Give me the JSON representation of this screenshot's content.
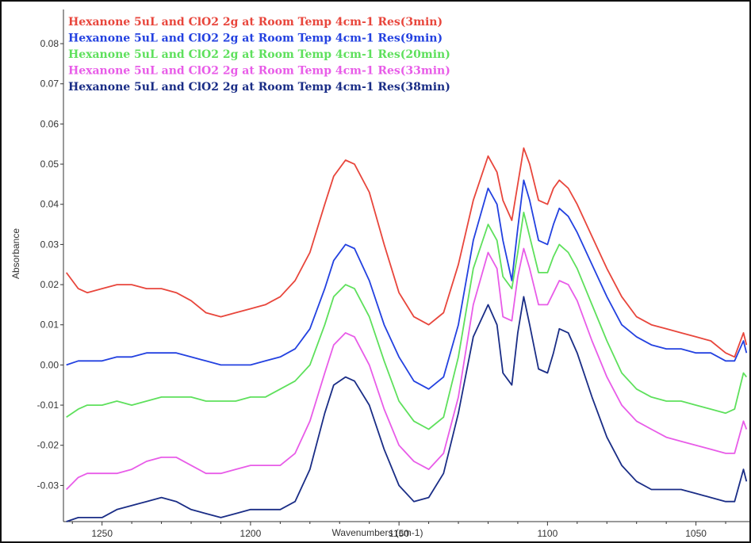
{
  "chart_data": {
    "type": "line",
    "title": "",
    "xlabel": "Wavenumbers (cm-1)",
    "ylabel": "Absorbance",
    "xlim": [
      1263,
      1032
    ],
    "x_reversed": true,
    "ylim": [
      -0.039,
      0.0885
    ],
    "x_ticks": [
      1250,
      1200,
      1150,
      1100,
      1050
    ],
    "x_tick_labels": [
      "1250",
      "1200",
      "1150",
      "1100",
      "1050"
    ],
    "y_ticks": [
      -0.03,
      -0.02,
      -0.01,
      0.0,
      0.01,
      0.02,
      0.03,
      0.04,
      0.05,
      0.06,
      0.07,
      0.08
    ],
    "y_tick_labels": [
      "-0.03",
      "-0.02",
      "-0.01",
      "0.00",
      "0.01",
      "0.02",
      "0.03",
      "0.04",
      "0.05",
      "0.06",
      "0.07",
      "0.08"
    ],
    "grid": false,
    "legend_position": "top-left",
    "x": [
      1262,
      1258,
      1255,
      1250,
      1245,
      1240,
      1235,
      1230,
      1225,
      1220,
      1215,
      1210,
      1205,
      1200,
      1195,
      1190,
      1185,
      1180,
      1175,
      1172,
      1168,
      1165,
      1160,
      1155,
      1150,
      1145,
      1140,
      1135,
      1130,
      1125,
      1120,
      1117,
      1115,
      1112,
      1110,
      1108,
      1106,
      1103,
      1100,
      1098,
      1096,
      1093,
      1090,
      1085,
      1080,
      1075,
      1070,
      1065,
      1060,
      1055,
      1050,
      1045,
      1040,
      1037,
      1034,
      1033
    ],
    "series": [
      {
        "name": "Hexanone 5uL and ClO2 2g at Room Temp 4cm-1 Res(3min)",
        "color": "#e8463c",
        "values": [
          0.023,
          0.019,
          0.018,
          0.019,
          0.02,
          0.02,
          0.019,
          0.019,
          0.018,
          0.016,
          0.013,
          0.012,
          0.013,
          0.014,
          0.015,
          0.017,
          0.021,
          0.028,
          0.04,
          0.047,
          0.051,
          0.05,
          0.043,
          0.03,
          0.018,
          0.012,
          0.01,
          0.013,
          0.025,
          0.041,
          0.052,
          0.048,
          0.041,
          0.036,
          0.045,
          0.054,
          0.05,
          0.041,
          0.04,
          0.044,
          0.046,
          0.044,
          0.04,
          0.032,
          0.024,
          0.017,
          0.012,
          0.01,
          0.009,
          0.008,
          0.007,
          0.006,
          0.003,
          0.002,
          0.008,
          0.005
        ]
      },
      {
        "name": "Hexanone 5uL and ClO2 2g at Room Temp 4cm-1 Res(9min)",
        "color": "#2341e0",
        "values": [
          0.0,
          0.001,
          0.001,
          0.001,
          0.002,
          0.002,
          0.003,
          0.003,
          0.003,
          0.002,
          0.001,
          0.0,
          0.0,
          0.0,
          0.001,
          0.002,
          0.004,
          0.009,
          0.019,
          0.026,
          0.03,
          0.029,
          0.021,
          0.01,
          0.002,
          -0.004,
          -0.006,
          -0.003,
          0.01,
          0.031,
          0.044,
          0.04,
          0.031,
          0.021,
          0.034,
          0.046,
          0.041,
          0.031,
          0.03,
          0.035,
          0.039,
          0.037,
          0.033,
          0.025,
          0.017,
          0.01,
          0.007,
          0.005,
          0.004,
          0.004,
          0.003,
          0.003,
          0.001,
          0.001,
          0.006,
          0.003
        ]
      },
      {
        "name": "Hexanone 5uL and ClO2 2g at Room Temp 4cm-1 Res(20min)",
        "color": "#5ee05c",
        "values": [
          -0.013,
          -0.011,
          -0.01,
          -0.01,
          -0.009,
          -0.01,
          -0.009,
          -0.008,
          -0.008,
          -0.008,
          -0.009,
          -0.009,
          -0.009,
          -0.008,
          -0.008,
          -0.006,
          -0.004,
          0.0,
          0.01,
          0.017,
          0.02,
          0.019,
          0.012,
          0.001,
          -0.009,
          -0.014,
          -0.016,
          -0.013,
          0.002,
          0.024,
          0.035,
          0.031,
          0.022,
          0.019,
          0.028,
          0.038,
          0.032,
          0.023,
          0.023,
          0.027,
          0.03,
          0.028,
          0.024,
          0.015,
          0.006,
          -0.002,
          -0.006,
          -0.008,
          -0.009,
          -0.009,
          -0.01,
          -0.011,
          -0.012,
          -0.011,
          -0.002,
          -0.003
        ]
      },
      {
        "name": "Hexanone 5uL and ClO2 2g at Room Temp 4cm-1 Res(33min)",
        "color": "#e85ce8",
        "values": [
          -0.031,
          -0.028,
          -0.027,
          -0.027,
          -0.027,
          -0.026,
          -0.024,
          -0.023,
          -0.023,
          -0.025,
          -0.027,
          -0.027,
          -0.026,
          -0.025,
          -0.025,
          -0.025,
          -0.022,
          -0.014,
          -0.002,
          0.005,
          0.008,
          0.007,
          0.0,
          -0.011,
          -0.02,
          -0.024,
          -0.026,
          -0.022,
          -0.008,
          0.015,
          0.028,
          0.024,
          0.012,
          0.011,
          0.022,
          0.029,
          0.024,
          0.015,
          0.015,
          0.018,
          0.021,
          0.02,
          0.016,
          0.006,
          -0.003,
          -0.01,
          -0.014,
          -0.016,
          -0.018,
          -0.019,
          -0.02,
          -0.021,
          -0.022,
          -0.022,
          -0.014,
          -0.016
        ]
      },
      {
        "name": "Hexanone 5uL and ClO2 2g at Room Temp 4cm-1 Res(38min)",
        "color": "#1a2d86",
        "values": [
          -0.039,
          -0.038,
          -0.038,
          -0.038,
          -0.036,
          -0.035,
          -0.034,
          -0.033,
          -0.034,
          -0.036,
          -0.037,
          -0.038,
          -0.037,
          -0.036,
          -0.036,
          -0.036,
          -0.034,
          -0.026,
          -0.012,
          -0.005,
          -0.003,
          -0.004,
          -0.01,
          -0.021,
          -0.03,
          -0.034,
          -0.033,
          -0.027,
          -0.012,
          0.007,
          0.015,
          0.01,
          -0.002,
          -0.005,
          0.008,
          0.017,
          0.01,
          -0.001,
          -0.002,
          0.003,
          0.009,
          0.008,
          0.003,
          -0.008,
          -0.018,
          -0.025,
          -0.029,
          -0.031,
          -0.031,
          -0.031,
          -0.032,
          -0.033,
          -0.034,
          -0.034,
          -0.026,
          -0.029
        ]
      }
    ]
  }
}
